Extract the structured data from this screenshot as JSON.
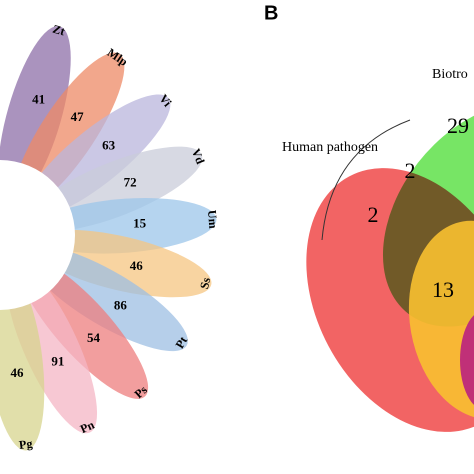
{
  "flower": {
    "petals": [
      {
        "label": "Zt",
        "value": "41",
        "color": "#8e6fa8"
      },
      {
        "label": "Mlp",
        "value": "47",
        "color": "#ee8a66"
      },
      {
        "label": "Vi",
        "value": "63",
        "color": "#b9b6dc"
      },
      {
        "label": "Vd",
        "value": "72",
        "color": "#c9ccda"
      },
      {
        "label": "Um",
        "value": "15",
        "color": "#9cc6ea"
      },
      {
        "label": "Ss",
        "value": "46",
        "color": "#f6c582"
      },
      {
        "label": "Pt",
        "value": "86",
        "color": "#9dbfe3"
      },
      {
        "label": "Ps",
        "value": "54",
        "color": "#ee7d7d"
      },
      {
        "label": "Pn",
        "value": "91",
        "color": "#f4b6c4"
      },
      {
        "label": "Pg",
        "value": "46",
        "color": "#d7d48e"
      }
    ]
  },
  "venn": {
    "panel_label": "B",
    "set_labels": [
      "Human pathogen",
      "Biotro"
    ],
    "regions": [
      "29",
      "2",
      "2",
      "13"
    ]
  }
}
